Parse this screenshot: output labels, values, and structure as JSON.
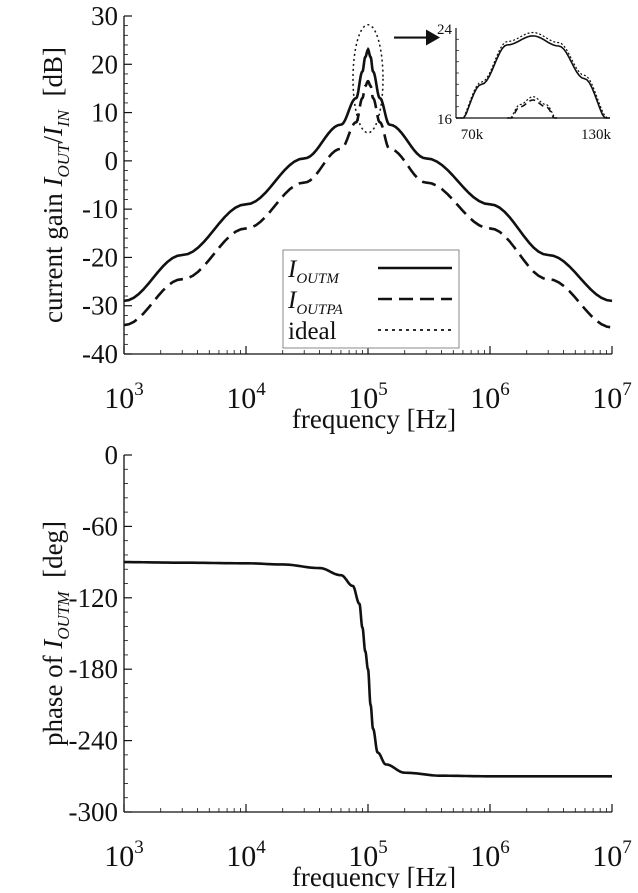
{
  "chart_data": [
    {
      "type": "line",
      "x_scale": "log",
      "xlim": [
        1000,
        10000000
      ],
      "ylim": [
        -40,
        30
      ],
      "ylabel_parts": {
        "prefix": "current gain ",
        "num": "I",
        "num_sub": "OUT",
        "slash": "/",
        "den": "I",
        "den_sub": "IN",
        "suffix": "[dB]"
      },
      "xlabel": "frequency [Hz]",
      "xticks": [
        {
          "base": "10",
          "exp": "3",
          "value": 1000
        },
        {
          "base": "10",
          "exp": "4",
          "value": 10000
        },
        {
          "base": "10",
          "exp": "5",
          "value": 100000
        },
        {
          "base": "10",
          "exp": "6",
          "value": 1000000
        },
        {
          "base": "10",
          "exp": "7",
          "value": 10000000
        }
      ],
      "yticks": [
        "30",
        "20",
        "10",
        "0",
        "-10",
        "-20",
        "-30",
        "-40"
      ],
      "grid": false,
      "legend_position": "bottom-center",
      "series": [
        {
          "name": "I",
          "name_sub": "OUTM",
          "dash": "solid",
          "color": "#111111",
          "x": [
            1000,
            3000,
            10000,
            30000,
            60000,
            80000,
            90000,
            95000,
            100000,
            105000,
            110000,
            125000,
            150000,
            300000,
            1000000,
            3000000,
            10000000
          ],
          "y": [
            -29,
            -19.5,
            -9,
            0.5,
            7.5,
            13,
            18.5,
            21.5,
            23,
            21.5,
            18.5,
            13,
            7.5,
            0.5,
            -9,
            -19.5,
            -29
          ]
        },
        {
          "name": "I",
          "name_sub": "OUTPA",
          "dash": "dashed",
          "color": "#111111",
          "x": [
            1000,
            3000,
            10000,
            30000,
            60000,
            80000,
            90000,
            95000,
            100000,
            105000,
            110000,
            125000,
            150000,
            300000,
            1000000,
            3000000,
            10000000
          ],
          "y": [
            -34,
            -24.5,
            -14,
            -4.5,
            2.5,
            8,
            13,
            15.5,
            16.5,
            15.5,
            13,
            8,
            2.5,
            -4.5,
            -14,
            -24.5,
            -34.5
          ]
        },
        {
          "name": "ideal",
          "dash": "dotted",
          "color": "#111111",
          "x": [
            1000,
            3000,
            10000,
            30000,
            60000,
            80000,
            90000,
            95000,
            100000,
            105000,
            110000,
            125000,
            150000,
            300000,
            1000000,
            3000000,
            10000000
          ],
          "y": [
            -29,
            -19.5,
            -9,
            0.5,
            7.5,
            13,
            18.5,
            21.5,
            23.3,
            21.5,
            18.5,
            13,
            7.5,
            0.5,
            -9,
            -19.5,
            -29
          ]
        }
      ],
      "annotations": [
        {
          "kind": "dotted-ellipse",
          "around": "resonance peak at 10^5 Hz"
        },
        {
          "kind": "arrow",
          "points_to": "inset"
        }
      ],
      "inset": {
        "xlim": [
          70000,
          130000
        ],
        "ylim": [
          16,
          24
        ],
        "xtick_labels": [
          "70k",
          "130k"
        ],
        "ytick_labels": [
          "24",
          "16"
        ],
        "series": [
          {
            "dash": "solid",
            "x": [
              70000,
              80000,
              90000,
              100000,
              110000,
              120000,
              130000
            ],
            "y": [
              15,
              19,
              22.5,
              23.3,
              22.4,
              19.5,
              15.5
            ]
          },
          {
            "dash": "dotted",
            "x": [
              70000,
              80000,
              90000,
              100000,
              110000,
              120000,
              130000
            ],
            "y": [
              15.2,
              19.2,
              22.8,
              23.6,
              22.7,
              19.8,
              15.8
            ]
          },
          {
            "dash": "dashed",
            "x": [
              90000,
              95000,
              100000,
              105000,
              110000
            ],
            "y": [
              15.5,
              17,
              17.6,
              17,
              15.5
            ]
          },
          {
            "dash": "dotted",
            "x": [
              90000,
              95000,
              100000,
              105000,
              110000
            ],
            "y": [
              15.7,
              17.2,
              17.9,
              17.2,
              15.7
            ]
          }
        ]
      }
    },
    {
      "type": "line",
      "x_scale": "log",
      "xlim": [
        1000,
        10000000
      ],
      "ylim": [
        -300,
        0
      ],
      "ylabel_parts": {
        "prefix": "phase of ",
        "var": "I",
        "var_sub": "OUTM",
        "suffix": "[deg]"
      },
      "xlabel": "frequency [Hz]",
      "xticks": [
        {
          "base": "10",
          "exp": "3",
          "value": 1000
        },
        {
          "base": "10",
          "exp": "4",
          "value": 10000
        },
        {
          "base": "10",
          "exp": "5",
          "value": 100000
        },
        {
          "base": "10",
          "exp": "6",
          "value": 1000000
        },
        {
          "base": "10",
          "exp": "7",
          "value": 10000000
        }
      ],
      "yticks": [
        "0",
        "-60",
        "-120",
        "-180",
        "-240",
        "-300"
      ],
      "grid": false,
      "series": [
        {
          "dash": "solid",
          "color": "#111111",
          "x": [
            1000,
            3000,
            10000,
            20000,
            40000,
            60000,
            75000,
            85000,
            90000,
            95000,
            100000,
            105000,
            110000,
            120000,
            140000,
            200000,
            400000,
            1000000,
            3000000,
            10000000
          ],
          "y": [
            -90,
            -90.5,
            -91,
            -92,
            -95,
            -101,
            -110,
            -125,
            -145,
            -165,
            -180,
            -210,
            -230,
            -250,
            -260,
            -267,
            -269.5,
            -270,
            -270,
            -270
          ]
        }
      ]
    }
  ]
}
